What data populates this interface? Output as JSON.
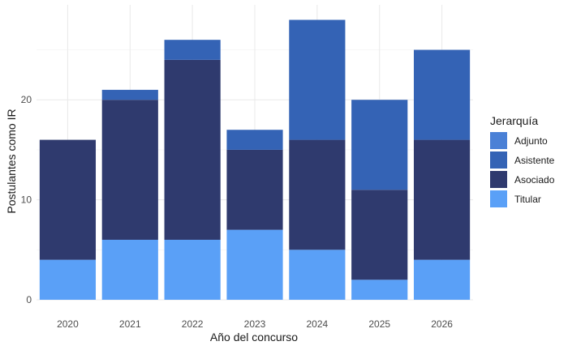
{
  "chart_data": {
    "type": "bar",
    "stacked": true,
    "categories": [
      "2020",
      "2021",
      "2022",
      "2023",
      "2024",
      "2025",
      "2026"
    ],
    "series": [
      {
        "name": "Titular",
        "color": "#5aa0f7",
        "values": [
          4,
          6,
          6,
          7,
          5,
          2,
          4
        ]
      },
      {
        "name": "Asociado",
        "color": "#2f3a6e",
        "values": [
          12,
          14,
          18,
          8,
          11,
          9,
          12
        ]
      },
      {
        "name": "Asistente",
        "color": "#3463b5",
        "values": [
          0,
          1,
          2,
          2,
          12,
          9,
          9
        ]
      },
      {
        "name": "Adjunto",
        "color": "#4a80d6",
        "values": [
          0,
          0,
          0,
          0,
          0,
          0,
          0
        ]
      }
    ],
    "xlabel": "Año del concurso",
    "ylabel": "Postulantes como IR",
    "ylim": [
      0,
      29.5
    ],
    "yticks": [
      "0",
      "10",
      "20"
    ],
    "grid": true,
    "legend": {
      "title": "Jerarquía",
      "position": "right",
      "entries": [
        "Adjunto",
        "Asistente",
        "Asociado",
        "Titular"
      ]
    }
  }
}
